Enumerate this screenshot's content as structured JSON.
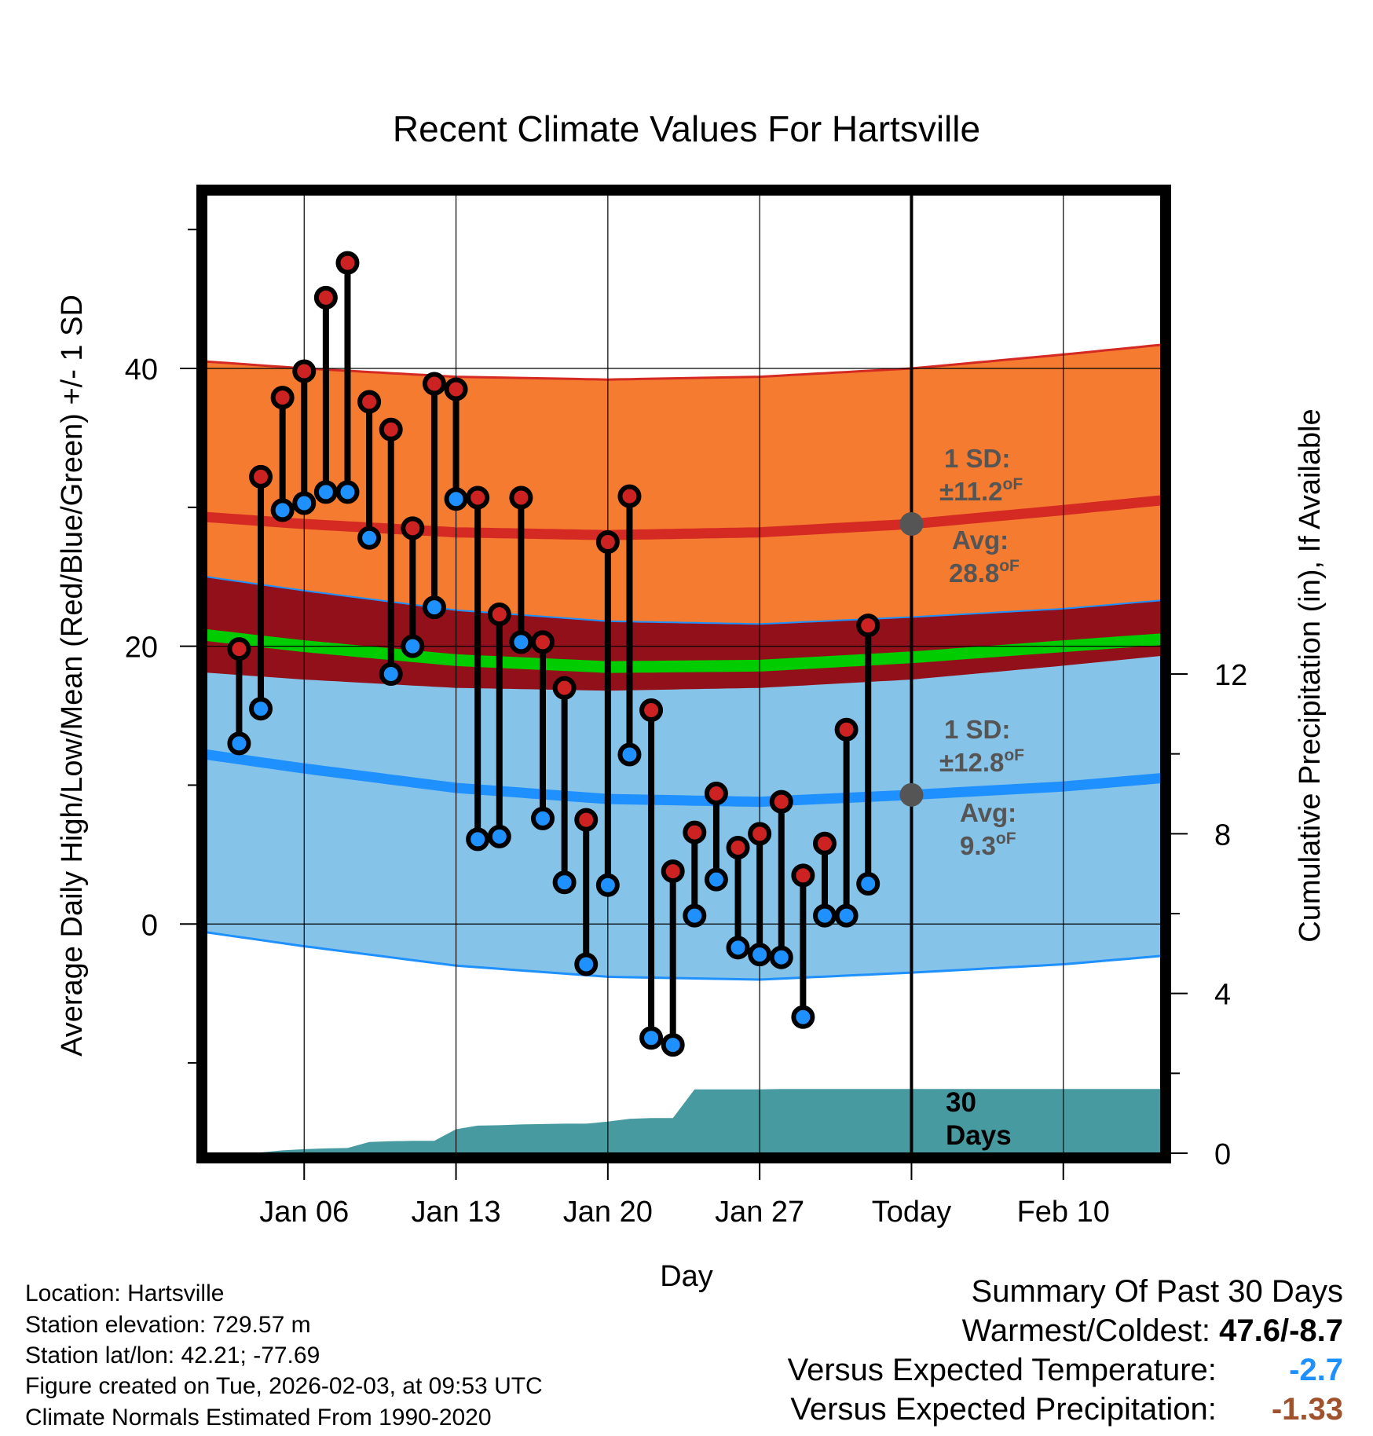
{
  "chart_data": {
    "type": "line",
    "title": "Recent Climate Values For Hartsville",
    "xlabel": "Day",
    "ylabel": "Average Daily High/Low/Mean (Red/Blue/Green) +/- 1 SD",
    "y2label": "Cumulative Precipitation (in), If Available",
    "ylim": [
      -16.5,
      52.5
    ],
    "y2lim": [
      0,
      24
    ],
    "xlim": [
      1.5,
      45.5
    ],
    "yticks": [
      0,
      20,
      40
    ],
    "y2ticks": [
      0,
      4,
      8,
      12
    ],
    "xticks": [
      {
        "day": 6,
        "label": "Jan 06"
      },
      {
        "day": 13,
        "label": "Jan 13"
      },
      {
        "day": 20,
        "label": "Jan 20"
      },
      {
        "day": 27,
        "label": "Jan 27"
      },
      {
        "day": 34,
        "label": "Today"
      },
      {
        "day": 41,
        "label": "Feb 10"
      }
    ],
    "today_day": 34,
    "normal_days": [
      1.5,
      6,
      13,
      20,
      27,
      34,
      41,
      45.5
    ],
    "normal_high": [
      29.3,
      28.8,
      28.2,
      28.0,
      28.2,
      28.8,
      29.8,
      30.5
    ],
    "normal_high_sd": 11.2,
    "normal_low": [
      12.2,
      11.2,
      9.8,
      9.0,
      8.8,
      9.3,
      9.9,
      10.5
    ],
    "normal_low_sd": 12.8,
    "normal_mean": [
      20.8,
      20.0,
      19.0,
      18.5,
      18.6,
      19.2,
      20.0,
      20.5
    ],
    "observations": [
      {
        "day": 3,
        "high": 19.8,
        "low": 13.0
      },
      {
        "day": 4,
        "high": 32.2,
        "low": 15.5
      },
      {
        "day": 5,
        "high": 37.9,
        "low": 29.8
      },
      {
        "day": 6,
        "high": 39.8,
        "low": 30.3
      },
      {
        "day": 7,
        "high": 45.1,
        "low": 31.1
      },
      {
        "day": 8,
        "high": 47.6,
        "low": 31.1
      },
      {
        "day": 9,
        "high": 37.6,
        "low": 27.8
      },
      {
        "day": 10,
        "high": 35.6,
        "low": 18.0
      },
      {
        "day": 11,
        "high": 28.5,
        "low": 20.0
      },
      {
        "day": 12,
        "high": 38.9,
        "low": 22.8
      },
      {
        "day": 13,
        "high": 38.5,
        "low": 30.6
      },
      {
        "day": 14,
        "high": 30.7,
        "low": 6.1
      },
      {
        "day": 15,
        "high": 22.3,
        "low": 6.3
      },
      {
        "day": 16,
        "high": 30.7,
        "low": 20.3
      },
      {
        "day": 17,
        "high": 20.3,
        "low": 7.6
      },
      {
        "day": 18,
        "high": 17.0,
        "low": 3.0
      },
      {
        "day": 19,
        "high": 7.5,
        "low": -2.9
      },
      {
        "day": 20,
        "high": 27.5,
        "low": 2.8
      },
      {
        "day": 21,
        "high": 30.8,
        "low": 12.2
      },
      {
        "day": 22,
        "high": 15.4,
        "low": -8.2
      },
      {
        "day": 23,
        "high": 3.8,
        "low": -8.7
      },
      {
        "day": 24,
        "high": 6.6,
        "low": 0.6
      },
      {
        "day": 25,
        "high": 9.4,
        "low": 3.2
      },
      {
        "day": 26,
        "high": 5.5,
        "low": -1.7
      },
      {
        "day": 27,
        "high": 6.5,
        "low": -2.2
      },
      {
        "day": 28,
        "high": 8.8,
        "low": -2.4
      },
      {
        "day": 29,
        "high": 3.5,
        "low": -6.7
      },
      {
        "day": 30,
        "high": 5.8,
        "low": 0.6
      },
      {
        "day": 31,
        "high": 14.0,
        "low": 0.6
      },
      {
        "day": 32,
        "high": 21.5,
        "low": 2.9
      }
    ],
    "precip_days": [
      3,
      4,
      5,
      6,
      7,
      8,
      9,
      10,
      11,
      12,
      13,
      14,
      15,
      16,
      17,
      18,
      19,
      20,
      21,
      22,
      23,
      24,
      25,
      26,
      27,
      28,
      29,
      30,
      31,
      32,
      33,
      34,
      35,
      36,
      37,
      38,
      39,
      40,
      41,
      42,
      43,
      44,
      45.5
    ],
    "precip_cum": [
      0.0,
      0.02,
      0.07,
      0.1,
      0.12,
      0.13,
      0.28,
      0.3,
      0.31,
      0.31,
      0.6,
      0.69,
      0.7,
      0.72,
      0.73,
      0.74,
      0.74,
      0.79,
      0.86,
      0.88,
      0.88,
      1.6,
      1.6,
      1.6,
      1.6,
      1.61,
      1.61,
      1.61,
      1.61,
      1.61,
      1.61,
      1.61,
      1.61,
      1.61,
      1.61,
      1.61,
      1.61,
      1.61,
      1.61,
      1.61,
      1.61,
      1.61,
      1.61
    ],
    "colors": {
      "high_band": "#f47b2f",
      "high_line": "#d42a23",
      "low_band": "#86c3e9",
      "low_line": "#1e90ff",
      "overlap_band": "#921019",
      "mean_line": "#00cc00",
      "precip_fill": "#489aa1",
      "high_dot": "#cc2222",
      "low_dot": "#1e90ff",
      "marker": "#555555"
    }
  },
  "annotations": {
    "high_sd_label": "1 SD:",
    "high_sd_value": "±11.2",
    "high_sd_unit": "oF",
    "high_avg_label": "Avg:",
    "high_avg_value": "28.8",
    "high_avg_unit": "oF",
    "low_sd_label": "1 SD:",
    "low_sd_value": "±12.8",
    "low_sd_unit": "oF",
    "low_avg_label": "Avg:",
    "low_avg_value": "9.3",
    "low_avg_unit": "oF",
    "days_number": "30",
    "days_word": "Days"
  },
  "metadata": {
    "location": "Location: Hartsville",
    "elevation": "Station elevation: 729.57 m",
    "latlon": "Station lat/lon: 42.21; -77.69",
    "created": "Figure created on Tue, 2026-02-03, at 09:53 UTC",
    "normals": "Climate Normals Estimated From 1990-2020"
  },
  "summary": {
    "title": "Summary Of Past 30 Days",
    "warmest_coldest_label": "Warmest/Coldest:",
    "warmest_coldest_value": "47.6/-8.7",
    "temp_label": "Versus Expected Temperature:",
    "temp_value": "-2.7",
    "temp_color": "#1e90ff",
    "precip_label": "Versus Expected Precipitation:",
    "precip_value": "-1.33",
    "precip_color": "#a0522d"
  }
}
